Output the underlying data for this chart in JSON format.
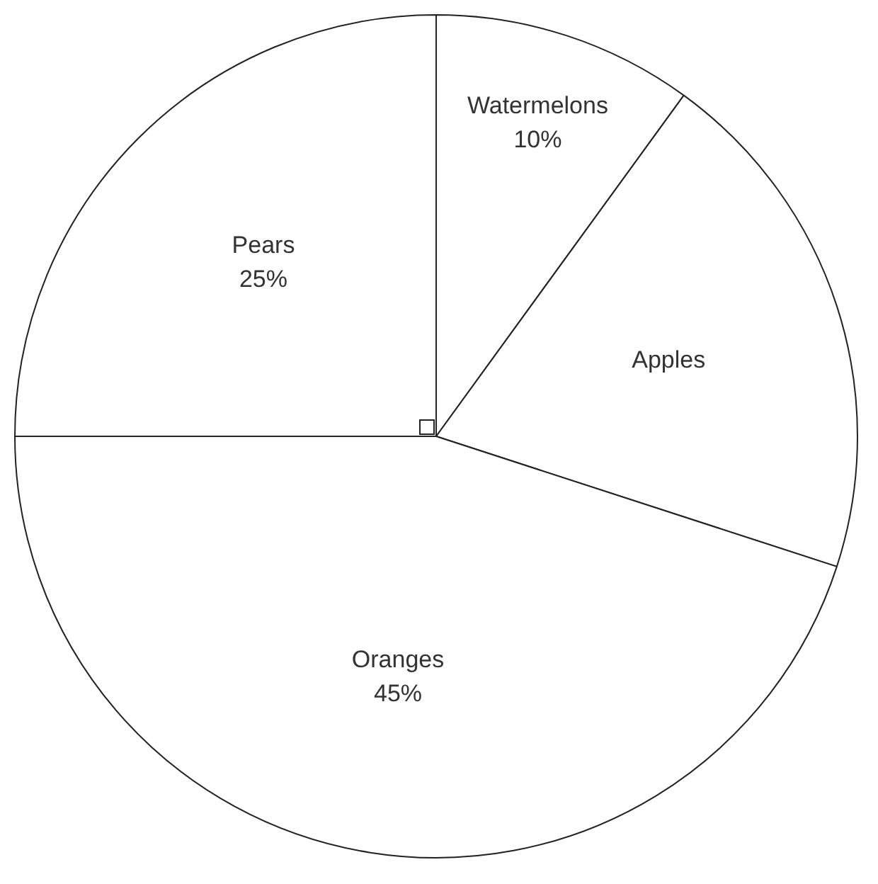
{
  "chart_data": {
    "type": "pie",
    "categories": [
      "Watermelons",
      "Apples",
      "Oranges",
      "Pears"
    ],
    "values": [
      10,
      20,
      45,
      25
    ],
    "value_labels": [
      "10%",
      null,
      "45%",
      "25%"
    ],
    "colors": [
      "#ffffff",
      "#ffffff",
      "#ffffff",
      "#ffffff"
    ],
    "legend": false
  }
}
